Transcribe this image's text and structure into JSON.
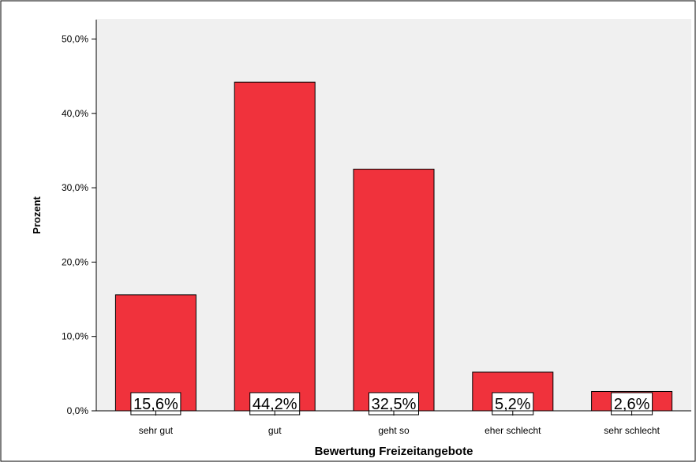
{
  "chart_data": {
    "type": "bar",
    "xlabel": "Bewertung Freizeitangebote",
    "ylabel": "Prozent",
    "categories": [
      "sehr gut",
      "gut",
      "geht so",
      "eher schlecht",
      "sehr schlecht"
    ],
    "values": [
      15.6,
      44.2,
      32.5,
      5.2,
      2.6
    ],
    "data_labels": [
      "15,6%",
      "44,2%",
      "32,5%",
      "5,2%",
      "2,6%"
    ],
    "y_ticks": [
      {
        "value": 0,
        "label": "0,0%"
      },
      {
        "value": 10,
        "label": "10,0%"
      },
      {
        "value": 20,
        "label": "20,0%"
      },
      {
        "value": 30,
        "label": "30,0%"
      },
      {
        "value": 40,
        "label": "40,0%"
      },
      {
        "value": 50,
        "label": "50,0%"
      }
    ],
    "ylim": [
      0,
      52.5
    ],
    "grid": false,
    "colors": {
      "bar": "#f0323c",
      "plot_background": "#f0f0f0",
      "axis": "#000000",
      "label_box": "#ffffff"
    }
  }
}
